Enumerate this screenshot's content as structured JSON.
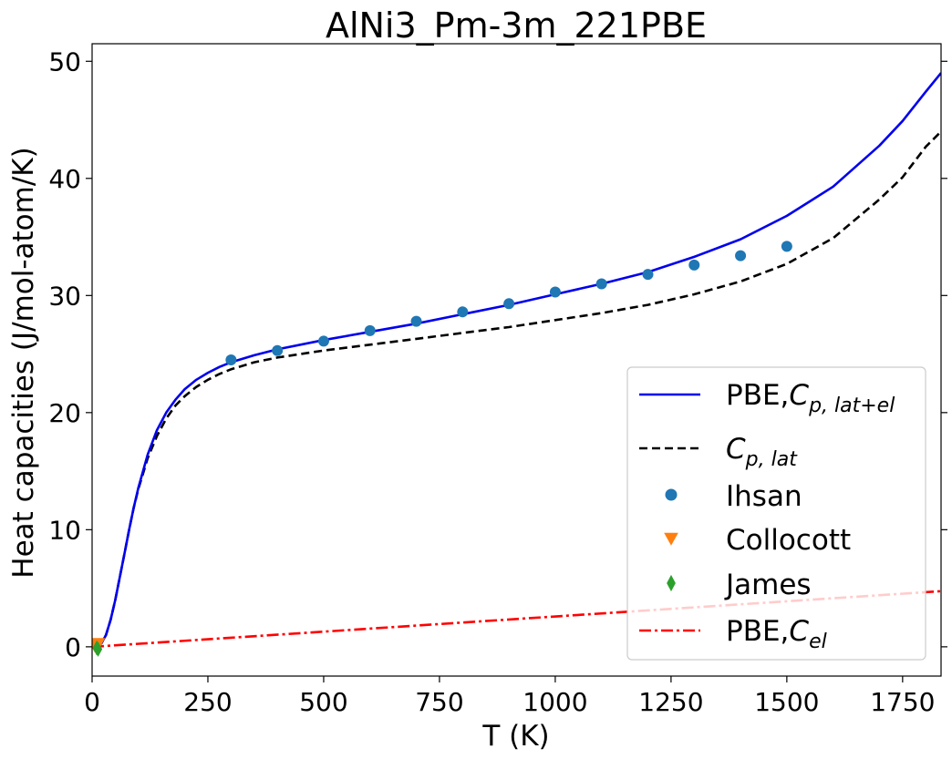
{
  "chart_data": {
    "type": "line",
    "title": "AlNi3_Pm-3m_221PBE",
    "xlabel": "T (K)",
    "ylabel": "Heat capacities (J/mol-atom/K)",
    "xlim": [
      0,
      1833
    ],
    "ylim": [
      -2.5,
      51.5
    ],
    "xticks": [
      0,
      250,
      500,
      750,
      1000,
      1250,
      1500,
      1750
    ],
    "yticks": [
      0,
      10,
      20,
      30,
      40,
      50
    ],
    "grid": false,
    "legend_position": "lower-right",
    "legend": [
      {
        "label": "PBE,",
        "math": "C",
        "sub": "p, lat+el"
      },
      {
        "label": "",
        "math": "C",
        "sub": "p, lat"
      },
      {
        "label": "Ihsan",
        "math": "",
        "sub": ""
      },
      {
        "label": "Collocott",
        "math": "",
        "sub": ""
      },
      {
        "label": "James",
        "math": "",
        "sub": ""
      },
      {
        "label": "PBE,",
        "math": "C",
        "sub": "el"
      }
    ],
    "series": [
      {
        "name": "PBE,C_p,lat+el",
        "style": "solid",
        "color": "#0000ee",
        "x": [
          10,
          20,
          30,
          40,
          50,
          60,
          70,
          80,
          90,
          100,
          120,
          140,
          160,
          180,
          200,
          225,
          250,
          275,
          300,
          350,
          400,
          500,
          600,
          700,
          800,
          900,
          1000,
          1100,
          1200,
          1300,
          1400,
          1500,
          1600,
          1700,
          1750,
          1800,
          1833
        ],
        "y": [
          0.05,
          0.3,
          1.0,
          2.3,
          4.0,
          6.0,
          8.0,
          10.0,
          11.9,
          13.6,
          16.4,
          18.5,
          20.0,
          21.1,
          22.0,
          22.8,
          23.4,
          23.9,
          24.3,
          24.9,
          25.4,
          26.2,
          26.9,
          27.6,
          28.4,
          29.2,
          30.1,
          31.0,
          32.0,
          33.3,
          34.8,
          36.8,
          39.3,
          42.8,
          44.9,
          47.4,
          49.0
        ]
      },
      {
        "name": "C_p,lat",
        "style": "dashed",
        "color": "#000000",
        "x": [
          10,
          20,
          30,
          40,
          50,
          60,
          70,
          80,
          90,
          100,
          120,
          140,
          160,
          180,
          200,
          225,
          250,
          275,
          300,
          350,
          400,
          500,
          600,
          700,
          800,
          900,
          1000,
          1100,
          1200,
          1300,
          1400,
          1500,
          1600,
          1700,
          1750,
          1800,
          1833
        ],
        "y": [
          0.05,
          0.3,
          1.0,
          2.3,
          4.0,
          6.0,
          8.0,
          10.0,
          11.9,
          13.5,
          16.1,
          18.0,
          19.5,
          20.6,
          21.4,
          22.2,
          22.8,
          23.3,
          23.7,
          24.3,
          24.7,
          25.3,
          25.8,
          26.3,
          26.8,
          27.3,
          27.9,
          28.5,
          29.2,
          30.1,
          31.2,
          32.7,
          34.9,
          38.2,
          40.1,
          42.7,
          44.0
        ]
      },
      {
        "name": "Ihsan",
        "style": "markers",
        "marker": "circle",
        "color": "#1f77b4",
        "x": [
          300,
          400,
          500,
          600,
          700,
          800,
          900,
          1000,
          1100,
          1200,
          1300,
          1400,
          1500
        ],
        "y": [
          24.5,
          25.3,
          26.1,
          27.0,
          27.8,
          28.6,
          29.3,
          30.3,
          31.0,
          31.8,
          32.6,
          33.4,
          34.2
        ]
      },
      {
        "name": "Collocott",
        "style": "markers",
        "marker": "triangle-down",
        "color": "#ff7f0e",
        "x": [
          6,
          8,
          10,
          12,
          14
        ],
        "y": [
          0.05,
          0.1,
          0.15,
          0.2,
          0.3
        ]
      },
      {
        "name": "James",
        "style": "markers",
        "marker": "diamond",
        "color": "#2ca02c",
        "x": [
          10,
          13
        ],
        "y": [
          -0.1,
          -0.2
        ]
      },
      {
        "name": "PBE,C_el",
        "style": "dashdot",
        "color": "#ff0000",
        "x": [
          0,
          1833
        ],
        "y": [
          0,
          4.75
        ]
      }
    ]
  }
}
